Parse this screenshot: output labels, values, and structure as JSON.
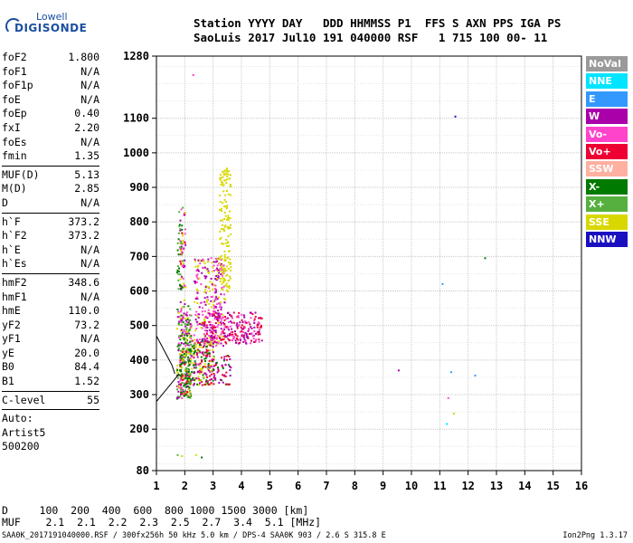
{
  "header": {
    "line1": "Station YYYY DAY   DDD HHMMSS P1  FFS S AXN PPS IGA PS",
    "line2": "SaoLuis 2017 Jul10 191 040000 RSF   1 715 100 00- 11"
  },
  "logo": {
    "line1": "Lowell",
    "line2": "DIGISONDE"
  },
  "params": [
    {
      "name": "foF2",
      "value": "1.800"
    },
    {
      "name": "foF1",
      "value": "N/A"
    },
    {
      "name": "foF1p",
      "value": "N/A"
    },
    {
      "name": "foE",
      "value": "N/A"
    },
    {
      "name": "foEp",
      "value": "0.40"
    },
    {
      "name": "fxI",
      "value": "2.20"
    },
    {
      "name": "foEs",
      "value": "N/A"
    },
    {
      "name": "fmin",
      "value": "1.35"
    },
    {
      "sep": true
    },
    {
      "name": "MUF(D)",
      "value": "5.13"
    },
    {
      "name": "M(D)",
      "value": "2.85"
    },
    {
      "name": "D",
      "value": "N/A"
    },
    {
      "sep": true
    },
    {
      "name": "h`F",
      "value": "373.2"
    },
    {
      "name": "h`F2",
      "value": "373.2"
    },
    {
      "name": "h`E",
      "value": "N/A"
    },
    {
      "name": "h`Es",
      "value": "N/A"
    },
    {
      "sep": true
    },
    {
      "name": "hmF2",
      "value": "348.6"
    },
    {
      "name": "hmF1",
      "value": "N/A"
    },
    {
      "name": "hmE",
      "value": "110.0"
    },
    {
      "name": "yF2",
      "value": "73.2"
    },
    {
      "name": "yF1",
      "value": "N/A"
    },
    {
      "name": "yE",
      "value": "20.0"
    },
    {
      "name": "B0",
      "value": "84.4"
    },
    {
      "name": "B1",
      "value": "1.52"
    },
    {
      "sep": true
    },
    {
      "name": "C-level",
      "value": "55"
    },
    {
      "sep": true
    },
    {
      "text": "Auto:"
    },
    {
      "text": "Artist5"
    },
    {
      "text": "500200"
    }
  ],
  "footer": {
    "line1": "D     100  200  400  600  800 1000 1500 3000 [km]",
    "line2": "MUF    2.1  2.1  2.2  2.3  2.5  2.7  3.4  5.1 [MHz]"
  },
  "file_line": "SAA0K_2017191040000.RSF / 300fx256h 50 kHz 5.0 km / DPS-4 SAA0K 903 / 2.6 S 315.8 E",
  "version": "Ion2Png 1.3.17",
  "legend": [
    {
      "label": "NoVal",
      "color": "#9a9a9a"
    },
    {
      "label": "NNE",
      "color": "#00e5ff"
    },
    {
      "label": "E",
      "color": "#3399ff"
    },
    {
      "label": "W",
      "color": "#aa00aa"
    },
    {
      "label": "Vo-",
      "color": "#ff44cc"
    },
    {
      "label": "Vo+",
      "color": "#ee0033"
    },
    {
      "label": "SSW",
      "color": "#ffb0a0"
    },
    {
      "label": "X-",
      "color": "#007a00"
    },
    {
      "label": "X+",
      "color": "#55b040"
    },
    {
      "label": "SSE",
      "color": "#d8d800"
    },
    {
      "label": "NNW",
      "color": "#1a10c0"
    }
  ],
  "chart_data": {
    "type": "scatter",
    "xlim": [
      1,
      16
    ],
    "ylim": [
      80,
      1280
    ],
    "x_ticks": [
      "1",
      "2",
      "3",
      "4",
      "5",
      "6",
      "7",
      "8",
      "9",
      "10",
      "11",
      "12",
      "13",
      "14",
      "15",
      "16"
    ],
    "y_ticks": [
      "80",
      "200",
      "300",
      "400",
      "500",
      "600",
      "700",
      "800",
      "900",
      "1000",
      "1100",
      "1280"
    ],
    "grid": true,
    "legend_position": "right",
    "trace_regions": [
      {
        "x": [
          1.7,
          2.2
        ],
        "y": [
          290,
          560
        ],
        "mix": [
          "#aa00aa",
          "#d8d800",
          "#007a00",
          "#ff44cc",
          "#55b040"
        ],
        "density": 1.0
      },
      {
        "x": [
          1.8,
          2.0
        ],
        "y": [
          560,
          840
        ],
        "mix": [
          "#aa00aa",
          "#ee0033",
          "#d8d800",
          "#ff44cc"
        ],
        "density": 0.5
      },
      {
        "x": [
          1.8,
          2.2
        ],
        "y": [
          300,
          440
        ],
        "mix": [
          "#007a00",
          "#55b040",
          "#d8d800",
          "#ee0033"
        ],
        "density": 0.9
      },
      {
        "x": [
          2.2,
          3.0
        ],
        "y": [
          330,
          460
        ],
        "mix": [
          "#d8d800",
          "#007a00",
          "#ee0033",
          "#aa00aa"
        ],
        "density": 0.9
      },
      {
        "x": [
          2.3,
          3.4
        ],
        "y": [
          440,
          700
        ],
        "mix": [
          "#d8d800",
          "#ff44cc",
          "#aa00aa"
        ],
        "density": 0.5
      },
      {
        "x": [
          3.2,
          3.6
        ],
        "y": [
          600,
          960
        ],
        "mix": [
          "#d8d800"
        ],
        "density": 0.5
      },
      {
        "x": [
          2.6,
          4.7
        ],
        "y": [
          450,
          540
        ],
        "mix": [
          "#aa00aa",
          "#ff44cc",
          "#ee0033"
        ],
        "density": 0.7
      },
      {
        "x": [
          2.8,
          3.6
        ],
        "y": [
          330,
          420
        ],
        "mix": [
          "#ee0033",
          "#007a00",
          "#aa00aa"
        ],
        "density": 0.4
      },
      {
        "x": [
          1.7,
          1.9
        ],
        "y": [
          600,
          860
        ],
        "mix": [
          "#007a00",
          "#55b040"
        ],
        "density": 0.3
      }
    ],
    "points": [
      {
        "x": 1.75,
        "y": 125,
        "c": "#55b040"
      },
      {
        "x": 1.9,
        "y": 122,
        "c": "#d8d800"
      },
      {
        "x": 2.4,
        "y": 125,
        "c": "#d8d800"
      },
      {
        "x": 2.6,
        "y": 118,
        "c": "#007a00"
      },
      {
        "x": 2.3,
        "y": 1225,
        "c": "#ff44cc"
      },
      {
        "x": 11.55,
        "y": 1105,
        "c": "#1a10c0"
      },
      {
        "x": 12.6,
        "y": 695,
        "c": "#007a00"
      },
      {
        "x": 11.1,
        "y": 620,
        "c": "#3399ff"
      },
      {
        "x": 9.55,
        "y": 370,
        "c": "#aa00aa"
      },
      {
        "x": 11.4,
        "y": 365,
        "c": "#3399ff"
      },
      {
        "x": 12.25,
        "y": 355,
        "c": "#3399ff"
      },
      {
        "x": 11.3,
        "y": 290,
        "c": "#ff44cc"
      },
      {
        "x": 11.5,
        "y": 245,
        "c": "#d8d800"
      },
      {
        "x": 11.25,
        "y": 215,
        "c": "#00e5ff"
      }
    ],
    "profile_line": [
      [
        1.0,
        470
      ],
      [
        1.55,
        385
      ],
      [
        1.65,
        360
      ]
    ],
    "profile_line2": [
      [
        1.0,
        280
      ],
      [
        1.6,
        340
      ],
      [
        1.8,
        360
      ]
    ]
  }
}
